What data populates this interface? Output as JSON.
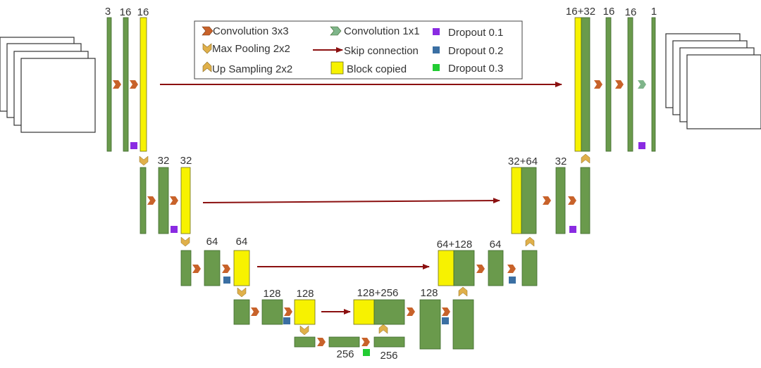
{
  "colors": {
    "conv_block": "#6a9a4c",
    "conv_edge": "#3f6a2c",
    "copied_block": "#f7f200",
    "copied_edge": "#6d6d1a",
    "conv3_arrow": "#c8622a",
    "conv1_arrow": "#7fb58a",
    "pool_arrow": "#e0b04a",
    "skip_arrow": "#8b1010",
    "dropout_1": "#8a2be2",
    "dropout_2": "#3b6fa3",
    "dropout_3": "#22cc33"
  },
  "icons": {
    "input_stack": "image-stack-icon",
    "output_stack": "image-stack-icon",
    "conv3": "chevron-right-orange-icon",
    "conv1": "chevron-right-green-icon",
    "pool": "chevron-down-gold-icon",
    "upsample": "chevron-up-gold-icon",
    "skip": "arrow-right-darkred-icon"
  },
  "legend": {
    "conv3x3": "Convolution 3x3",
    "maxpool": "Max Pooling 2x2",
    "upsample": "Up Sampling 2x2",
    "conv1x1": "Convolution 1x1",
    "skip": "Skip connection",
    "copied": "Block copied",
    "dropout1": "Dropout 0.1",
    "dropout2": "Dropout 0.2",
    "dropout3": "Dropout 0.3"
  },
  "labels": {
    "enc1_in": "3",
    "enc1_a": "16",
    "enc1_b": "16",
    "enc2_a": "32",
    "enc2_b": "32",
    "enc3_a": "64",
    "enc3_b": "64",
    "enc4_a": "128",
    "enc4_b": "128",
    "bottom_a": "256",
    "bottom_b": "256",
    "dec4_concat": "128+256",
    "dec4_a": "128",
    "dec3_concat": "64+128",
    "dec3_a": "64",
    "dec2_concat": "32+64",
    "dec2_a": "32",
    "dec1_concat": "16+32",
    "dec1_a": "16",
    "dec1_b": "16",
    "dec1_out": "1"
  }
}
